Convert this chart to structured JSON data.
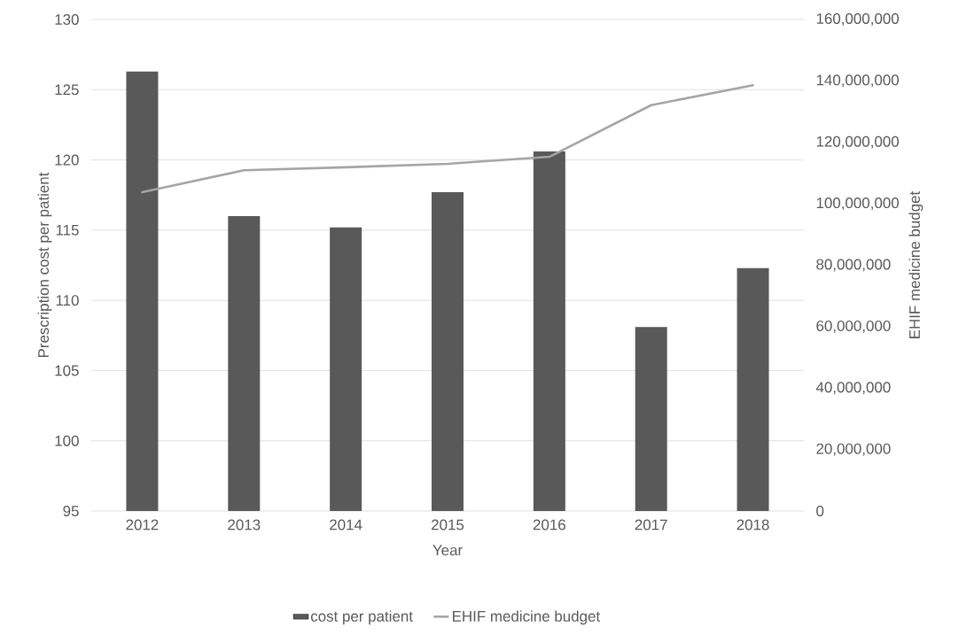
{
  "chart_data": {
    "type": "bar",
    "categories": [
      "2012",
      "2013",
      "2014",
      "2015",
      "2016",
      "2017",
      "2018"
    ],
    "xlabel": "Year",
    "ylabel": "Prescription cost per patient",
    "y2label": "EHIF medicine budget",
    "series": [
      {
        "name": "cost per patient",
        "color": "#595959",
        "values": [
          126.3,
          116.0,
          115.2,
          117.7,
          120.6,
          108.1,
          112.3
        ]
      },
      {
        "name": "EHIF medicine budget",
        "type": "line",
        "axis": "y2",
        "color": "#a5a5a5",
        "values": [
          103800000,
          110900000,
          111900000,
          113000000,
          115300000,
          132100000,
          138600000
        ]
      }
    ],
    "ylim": [
      95,
      130
    ],
    "yticks": [
      95,
      100,
      105,
      110,
      115,
      120,
      125,
      130
    ],
    "y2lim": [
      0,
      160000000
    ],
    "y2ticks": [
      0,
      {
        "value": 20000000,
        "label": "20,000,000"
      },
      {
        "value": 40000000,
        "label": "40,000,000"
      },
      {
        "value": 60000000,
        "label": "60,000,000"
      },
      {
        "value": 80000000,
        "label": "80,000,000"
      },
      {
        "value": 100000000,
        "label": "100,000,000"
      },
      {
        "value": 120000000,
        "label": "120,000,000"
      },
      {
        "value": 140000000,
        "label": "140,000,000"
      },
      {
        "value": 160000000,
        "label": "160,000,000"
      }
    ],
    "grid": "y",
    "legend": "bottom"
  }
}
